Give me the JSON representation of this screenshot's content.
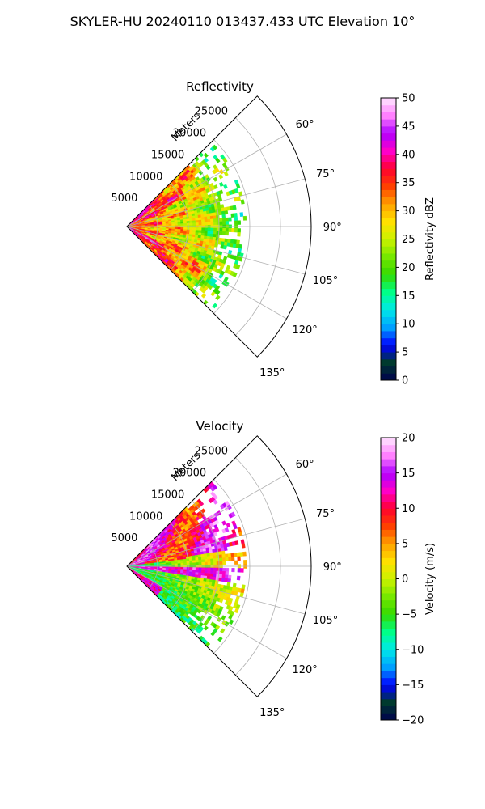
{
  "figure_title": "SKYLER-HU  20240110  013437.433 UTC Elevation 10°",
  "chart_data": [
    {
      "type": "heatmap",
      "projection": "polar-sector",
      "title": "Reflectivity",
      "radial_axis_label": "Meters",
      "radial_range": [
        0,
        30000
      ],
      "radial_ticks": [
        5000,
        10000,
        15000,
        20000,
        25000
      ],
      "radial_tick_labels": [
        "5000",
        "10000",
        "15000",
        "20000",
        "25000"
      ],
      "azimuth_range": [
        45,
        135
      ],
      "azimuth_ticks": [
        60,
        75,
        90,
        105,
        120,
        135
      ],
      "azimuth_tick_labels": [
        "60°",
        "75°",
        "90°",
        "105°",
        "120°",
        "135°"
      ],
      "data_extent_m": 19500,
      "grid": true,
      "colorbar": {
        "label": "Reflectivity dBZ",
        "range": [
          0,
          50
        ],
        "ticks": [
          0,
          5,
          10,
          15,
          20,
          25,
          30,
          35,
          40,
          45,
          50
        ],
        "tick_labels": [
          "0",
          "5",
          "10",
          "15",
          "20",
          "25",
          "30",
          "35",
          "40",
          "45",
          "50"
        ],
        "colormap": [
          "#00004d",
          "#003a2e",
          "#0000ff",
          "#00a0ff",
          "#00e8e8",
          "#00ff88",
          "#33d900",
          "#77e800",
          "#ccf200",
          "#ffe000",
          "#ffa000",
          "#ff4000",
          "#ff0030",
          "#ff00c8",
          "#b000ff",
          "#ff80ff",
          "#ffe8ff"
        ]
      }
    },
    {
      "type": "heatmap",
      "projection": "polar-sector",
      "title": "Velocity",
      "radial_axis_label": "Meters",
      "radial_range": [
        0,
        30000
      ],
      "radial_ticks": [
        5000,
        10000,
        15000,
        20000,
        25000
      ],
      "radial_tick_labels": [
        "5000",
        "10000",
        "15000",
        "20000",
        "25000"
      ],
      "azimuth_range": [
        45,
        135
      ],
      "azimuth_ticks": [
        60,
        75,
        90,
        105,
        120,
        135
      ],
      "azimuth_tick_labels": [
        "60°",
        "75°",
        "90°",
        "105°",
        "120°",
        "135°"
      ],
      "data_extent_m": 19500,
      "grid": true,
      "colorbar": {
        "label": "Velocity (m/s)",
        "range": [
          -20,
          20
        ],
        "ticks": [
          -20,
          -15,
          -10,
          -5,
          0,
          5,
          10,
          15,
          20
        ],
        "tick_labels": [
          "−20",
          "−15",
          "−10",
          "−5",
          "0",
          "5",
          "10",
          "15",
          "20"
        ],
        "colormap": [
          "#00004d",
          "#003a2e",
          "#0000ff",
          "#00a0ff",
          "#00e8e8",
          "#00ff88",
          "#33d900",
          "#77e800",
          "#ccf200",
          "#ffe000",
          "#ffa000",
          "#ff4000",
          "#ff0030",
          "#ff00c8",
          "#b000ff",
          "#ff80ff",
          "#ffe8ff"
        ]
      }
    }
  ]
}
